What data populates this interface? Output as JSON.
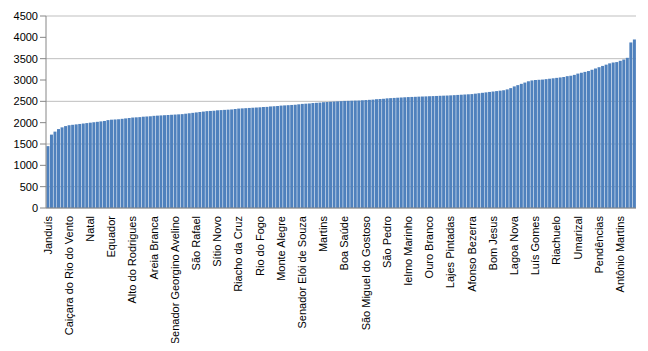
{
  "chart_data": {
    "type": "bar",
    "categories": [
      "Janduís",
      null,
      null,
      null,
      null,
      null,
      "Caiçara do Rio do Vento",
      null,
      null,
      null,
      null,
      null,
      "Natal",
      null,
      null,
      null,
      null,
      null,
      "Equador",
      null,
      null,
      null,
      null,
      null,
      "Alto do Rodrigues",
      null,
      null,
      null,
      null,
      null,
      "Areia Branca",
      null,
      null,
      null,
      null,
      null,
      "Senador Georgino Avelino",
      null,
      null,
      null,
      null,
      null,
      "São Rafael",
      null,
      null,
      null,
      null,
      null,
      "Sítio Novo",
      null,
      null,
      null,
      null,
      null,
      "Riacho da Cruz",
      null,
      null,
      null,
      null,
      null,
      "Rio do Fogo",
      null,
      null,
      null,
      null,
      null,
      "Monte Alegre",
      null,
      null,
      null,
      null,
      null,
      "Senador Elói de Souza",
      null,
      null,
      null,
      null,
      null,
      "Martins",
      null,
      null,
      null,
      null,
      null,
      "Boa Saúde",
      null,
      null,
      null,
      null,
      null,
      "São Miguel do Gostoso",
      null,
      null,
      null,
      null,
      null,
      "São Pedro",
      null,
      null,
      null,
      null,
      null,
      "Ielmo Marinho",
      null,
      null,
      null,
      null,
      null,
      "Ouro Branco",
      null,
      null,
      null,
      null,
      null,
      "Lajes Pintadas",
      null,
      null,
      null,
      null,
      null,
      "Afonso Bezerra",
      null,
      null,
      null,
      null,
      null,
      "Bom Jesus",
      null,
      null,
      null,
      null,
      null,
      "Lagoa Nova",
      null,
      null,
      null,
      null,
      null,
      "Luís Gomes",
      null,
      null,
      null,
      null,
      null,
      "Riachuelo",
      null,
      null,
      null,
      null,
      null,
      "Umarizal",
      null,
      null,
      null,
      null,
      null,
      "Pendências",
      null,
      null,
      null,
      null,
      null,
      "Antônio Martins",
      null,
      null,
      null,
      null
    ],
    "values": [
      1450,
      1720,
      1790,
      1850,
      1890,
      1920,
      1940,
      1950,
      1960,
      1970,
      1980,
      1990,
      2000,
      2010,
      2020,
      2030,
      2040,
      2060,
      2070,
      2075,
      2080,
      2090,
      2100,
      2110,
      2120,
      2125,
      2130,
      2140,
      2145,
      2150,
      2160,
      2165,
      2170,
      2175,
      2180,
      2185,
      2190,
      2195,
      2200,
      2210,
      2220,
      2230,
      2240,
      2250,
      2260,
      2270,
      2275,
      2280,
      2290,
      2295,
      2300,
      2305,
      2310,
      2320,
      2330,
      2335,
      2340,
      2345,
      2350,
      2355,
      2360,
      2365,
      2370,
      2380,
      2385,
      2390,
      2400,
      2405,
      2410,
      2415,
      2420,
      2430,
      2440,
      2445,
      2450,
      2460,
      2465,
      2470,
      2480,
      2485,
      2490,
      2495,
      2500,
      2505,
      2510,
      2512,
      2515,
      2518,
      2520,
      2525,
      2530,
      2535,
      2540,
      2550,
      2555,
      2560,
      2570,
      2575,
      2580,
      2585,
      2590,
      2595,
      2600,
      2603,
      2606,
      2610,
      2613,
      2616,
      2620,
      2623,
      2626,
      2630,
      2633,
      2636,
      2640,
      2645,
      2650,
      2655,
      2660,
      2665,
      2670,
      2680,
      2690,
      2700,
      2710,
      2720,
      2730,
      2740,
      2750,
      2760,
      2780,
      2810,
      2850,
      2880,
      2910,
      2940,
      2970,
      2990,
      3000,
      3005,
      3010,
      3020,
      3030,
      3040,
      3050,
      3060,
      3070,
      3090,
      3100,
      3120,
      3150,
      3170,
      3190,
      3210,
      3240,
      3270,
      3300,
      3330,
      3360,
      3390,
      3410,
      3420,
      3450,
      3480,
      3520,
      3880,
      3950
    ],
    "color": "#4f81bd",
    "ylim": [
      0,
      4500
    ],
    "yticks": [
      0,
      500,
      1000,
      1500,
      2000,
      2500,
      3000,
      3500,
      4000,
      4500
    ],
    "grid": true
  }
}
